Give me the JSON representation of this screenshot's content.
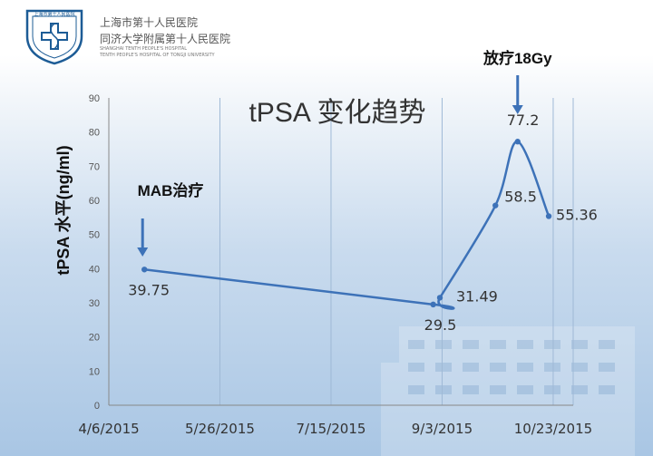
{
  "header": {
    "hospital_name_cn": "上海市第十人民医院",
    "hospital_affil_cn": "同济大学附属第十人民医院",
    "hospital_name_en_1": "SHANGHAI TENTH PEOPLE'S HOSPITAL",
    "hospital_name_en_2": "TENTH PEOPLE'S HOSPITAL OF TONGJI UNIVERSITY",
    "logo_text": "上海市第十人民医院",
    "logo_ring_text": "TENTH PEOPLE'S HOSPITAL OF TONGJI UNIVERSITY",
    "accent_color": "#1d5c96"
  },
  "chart_data": {
    "type": "line",
    "title": "tPSA 变化趋势",
    "ylabel": "tPSA 水平(ng/ml)",
    "xlabel": "",
    "ylim": [
      0,
      90
    ],
    "yticks": [
      0,
      10,
      20,
      30,
      40,
      50,
      60,
      70,
      80,
      90
    ],
    "xtick_labels": [
      "4/6/2015",
      "5/26/2015",
      "7/15/2015",
      "9/3/2015",
      "10/23/2015"
    ],
    "grid": "vertical",
    "series": [
      {
        "color": "#3d72b8",
        "points": [
          {
            "x": "2015-04-22",
            "y": 39.75,
            "label": "39.75"
          },
          {
            "x": "2015-08-30",
            "y": 29.5,
            "label": "29.5"
          },
          {
            "x": "2015-09-02",
            "y": 31.49,
            "label": "31.49"
          },
          {
            "x": "2015-09-27",
            "y": 58.5,
            "label": "58.5"
          },
          {
            "x": "2015-10-07",
            "y": 77.2,
            "label": "77.2"
          },
          {
            "x": "2015-10-21",
            "y": 55.36,
            "label": "55.36"
          }
        ]
      }
    ],
    "annotations": [
      {
        "text": "MAB治疗",
        "target_point": 0
      },
      {
        "text": "放疗18Gy",
        "target_point": 4
      }
    ]
  }
}
